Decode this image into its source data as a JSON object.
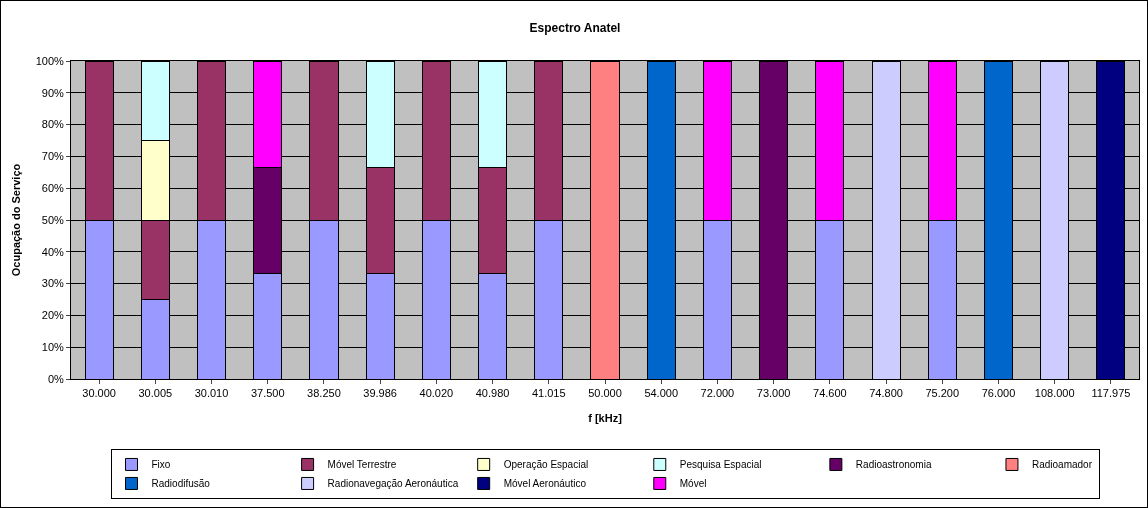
{
  "chart_data": {
    "type": "bar",
    "title": "Espectro Anatel",
    "xlabel": "f [kHz]",
    "ylabel": "Ocupação do Serviço",
    "stacked": true,
    "grid": "y",
    "legend": "bottom",
    "categories": [
      "30.000",
      "30.005",
      "30.010",
      "37.500",
      "38.250",
      "39.986",
      "40.020",
      "40.980",
      "41.015",
      "50.000",
      "54.000",
      "72.000",
      "73.000",
      "74.600",
      "74.800",
      "75.200",
      "76.000",
      "108.000",
      "117.975"
    ],
    "ylim": [
      0,
      100
    ],
    "yticks": [
      {
        "value": 0,
        "label": "0%"
      },
      {
        "value": 10,
        "label": "10%"
      },
      {
        "value": 20,
        "label": "20%"
      },
      {
        "value": 30,
        "label": "30%"
      },
      {
        "value": 40,
        "label": "40%"
      },
      {
        "value": 50,
        "label": "50%"
      },
      {
        "value": 60,
        "label": "60%"
      },
      {
        "value": 70,
        "label": "70%"
      },
      {
        "value": 80,
        "label": "80%"
      },
      {
        "value": 90,
        "label": "90%"
      },
      {
        "value": 100,
        "label": "100%"
      }
    ],
    "series": [
      {
        "name": "Fixo",
        "color": "#9999ff",
        "values": [
          50,
          25,
          50,
          33.3,
          50,
          33.3,
          50,
          33.3,
          50,
          null,
          null,
          50,
          null,
          50,
          null,
          50,
          null,
          null,
          null
        ]
      },
      {
        "name": "Móvel Terrestre",
        "color": "#993366",
        "values": [
          50,
          25,
          50,
          null,
          50,
          33.3,
          50,
          33.3,
          50,
          null,
          null,
          null,
          null,
          null,
          null,
          null,
          null,
          null,
          null
        ]
      },
      {
        "name": "Operação Espacial",
        "color": "#ffffcc",
        "values": [
          null,
          25,
          null,
          null,
          null,
          null,
          null,
          null,
          null,
          null,
          null,
          null,
          null,
          null,
          null,
          null,
          null,
          null,
          null
        ]
      },
      {
        "name": "Pesquisa Espacial",
        "color": "#ccffff",
        "values": [
          null,
          25,
          null,
          null,
          null,
          33.3,
          null,
          33.3,
          null,
          null,
          null,
          null,
          null,
          null,
          null,
          null,
          null,
          null,
          null
        ]
      },
      {
        "name": "Radioastronomia",
        "color": "#660066",
        "values": [
          null,
          null,
          null,
          33.3,
          null,
          null,
          null,
          null,
          null,
          null,
          null,
          null,
          100,
          null,
          null,
          null,
          null,
          null,
          null
        ]
      },
      {
        "name": "Radioamador",
        "color": "#ff8080",
        "values": [
          null,
          null,
          null,
          null,
          null,
          null,
          null,
          null,
          null,
          100,
          null,
          null,
          null,
          null,
          null,
          null,
          null,
          null,
          null
        ]
      },
      {
        "name": "Radiodifusão",
        "color": "#0066cc",
        "values": [
          null,
          null,
          null,
          null,
          null,
          null,
          null,
          null,
          null,
          null,
          100,
          null,
          null,
          null,
          null,
          null,
          100,
          null,
          null
        ]
      },
      {
        "name": "Radionavegação Aeronáutica",
        "color": "#ccccff",
        "values": [
          null,
          null,
          null,
          null,
          null,
          null,
          null,
          null,
          null,
          null,
          null,
          null,
          null,
          null,
          100,
          null,
          null,
          100,
          null
        ]
      },
      {
        "name": "Móvel Aeronáutico",
        "color": "#000080",
        "values": [
          null,
          null,
          null,
          null,
          null,
          null,
          null,
          null,
          null,
          null,
          null,
          null,
          null,
          null,
          null,
          null,
          null,
          null,
          100
        ]
      },
      {
        "name": "Móvel",
        "color": "#ff00ff",
        "values": [
          null,
          null,
          null,
          33.3,
          null,
          null,
          null,
          null,
          null,
          null,
          null,
          50,
          null,
          50,
          null,
          50,
          null,
          null,
          null
        ]
      }
    ]
  }
}
